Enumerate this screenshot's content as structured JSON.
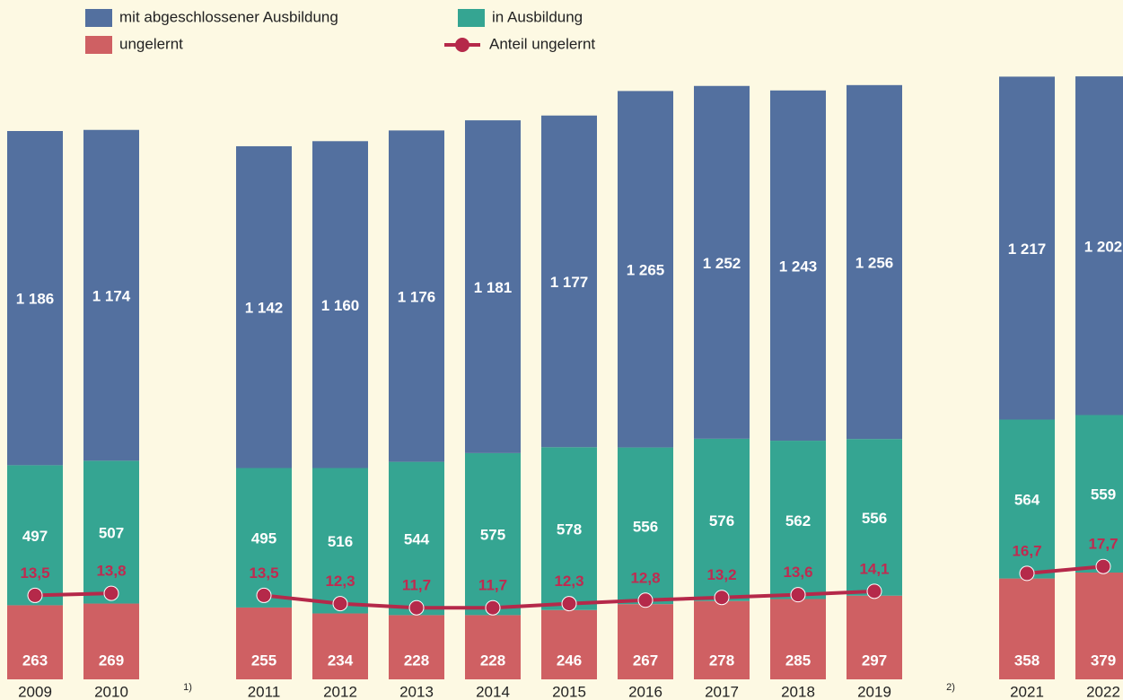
{
  "chart_data": {
    "type": "stacked-bar-line",
    "categories": [
      "2009",
      "2010",
      "1)",
      "2011",
      "2012",
      "2013",
      "2014",
      "2015",
      "2016",
      "2017",
      "2018",
      "2019",
      "2)",
      "2021",
      "2022"
    ],
    "series": [
      {
        "name": "mit abgeschlossener Ausbildung",
        "color": "#53709f",
        "type": "bar",
        "values": [
          1186,
          1174,
          null,
          1142,
          1160,
          1176,
          1181,
          1177,
          1265,
          1252,
          1243,
          1256,
          null,
          1217,
          1202
        ],
        "value_labels": [
          "1 186",
          "1 174",
          null,
          "1 142",
          "1 160",
          "1 176",
          "1 181",
          "1 177",
          "1 265",
          "1 252",
          "1 243",
          "1 256",
          null,
          "1 217",
          "1 202"
        ]
      },
      {
        "name": "in Ausbildung",
        "color": "#35a592",
        "type": "bar",
        "values": [
          497,
          507,
          null,
          495,
          516,
          544,
          575,
          578,
          556,
          576,
          562,
          556,
          null,
          564,
          559
        ]
      },
      {
        "name": "ungelernt",
        "color": "#cf6063",
        "type": "bar",
        "values": [
          263,
          269,
          null,
          255,
          234,
          228,
          228,
          246,
          267,
          278,
          285,
          297,
          null,
          358,
          379
        ]
      },
      {
        "name": "Anteil ungelernt",
        "color": "#b5294a",
        "type": "line",
        "axis": "y2",
        "values": [
          13.5,
          13.8,
          null,
          13.5,
          12.3,
          11.7,
          11.7,
          12.3,
          12.8,
          13.2,
          13.6,
          14.1,
          null,
          16.7,
          17.7
        ],
        "value_labels": [
          "13,5",
          "13,8",
          null,
          "13,5",
          "12,3",
          "11,7",
          "11,7",
          "12,3",
          "12,8",
          "13,2",
          "13,6",
          "14,1",
          null,
          "16,7",
          "17,7"
        ]
      }
    ],
    "ylim": [
      0,
      2411
    ],
    "y2lim": [
      1.3,
      100
    ]
  }
}
